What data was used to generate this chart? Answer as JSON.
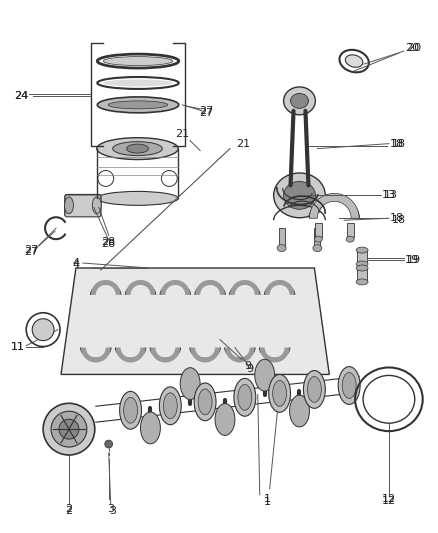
{
  "bg_color": "#ffffff",
  "line_color": "#333333",
  "label_color": "#222222",
  "font_size": 8,
  "figsize": [
    4.38,
    5.33
  ],
  "dpi": 100
}
